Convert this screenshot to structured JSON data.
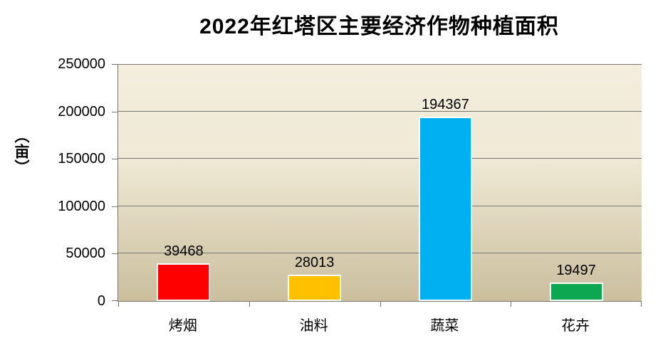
{
  "chart": {
    "title": "2022年红塔区主要经济作物种植面积",
    "y_axis_title": "（亩）"
  },
  "chart_data": {
    "type": "bar",
    "title": "2022年红塔区主要经济作物种植面积",
    "categories": [
      "烤烟",
      "油料",
      "蔬菜",
      "花卉"
    ],
    "values": [
      39468,
      28013,
      194367,
      19497
    ],
    "data_labels": [
      "39468",
      "28013",
      "194367",
      "19497"
    ],
    "bar_colors": [
      "#ff0000",
      "#ffc000",
      "#00b0f0",
      "#0ca750"
    ],
    "xlabel": "",
    "ylabel": "（亩）",
    "ylim": [
      0,
      250000
    ],
    "y_ticks": [
      0,
      50000,
      100000,
      150000,
      200000,
      250000
    ],
    "y_tick_labels": [
      "0",
      "50000",
      "100000",
      "150000",
      "200000",
      "250000"
    ],
    "grid": true,
    "legend": false,
    "plot_background_top": "#f3eedd",
    "plot_background_bottom": "#cabe9d",
    "gridline_color": "#76766c",
    "axis_color": "#76766c",
    "bar_border_color": "#ffffff"
  }
}
